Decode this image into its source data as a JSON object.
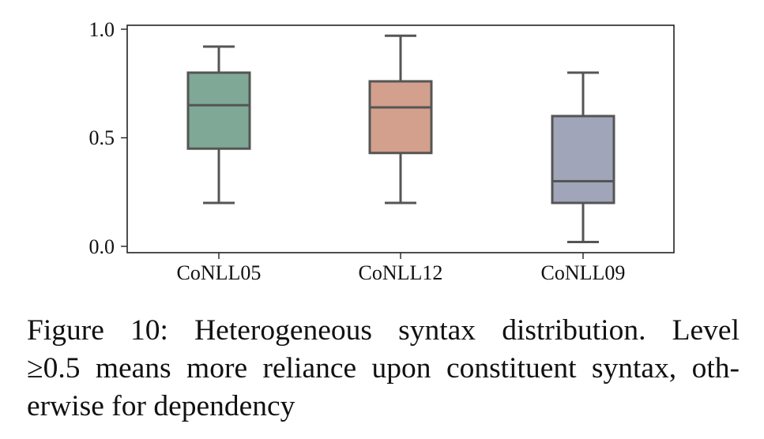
{
  "chart_data": {
    "type": "box",
    "categories": [
      "CoNLL05",
      "CoNLL12",
      "CoNLL09"
    ],
    "colors": [
      "#7fa896",
      "#d2a08c",
      "#a0a5b9"
    ],
    "boxes": [
      {
        "whisker_low": 0.2,
        "q1": 0.45,
        "median": 0.65,
        "q3": 0.8,
        "whisker_high": 0.92
      },
      {
        "whisker_low": 0.2,
        "q1": 0.43,
        "median": 0.64,
        "q3": 0.76,
        "whisker_high": 0.97
      },
      {
        "whisker_low": 0.02,
        "q1": 0.2,
        "median": 0.3,
        "q3": 0.6,
        "whisker_high": 0.8
      }
    ],
    "y_ticks": [
      "0.0",
      "0.5",
      "1.0"
    ],
    "ylim": [
      0.0,
      1.0
    ],
    "grid": false,
    "line_color": "#555555"
  },
  "caption": {
    "line1": "Figure 10:  Heterogeneous syntax distribution.  Level",
    "line2": "≥0.5 means more reliance upon constituent syntax, oth-",
    "line3": "erwise for dependency"
  }
}
